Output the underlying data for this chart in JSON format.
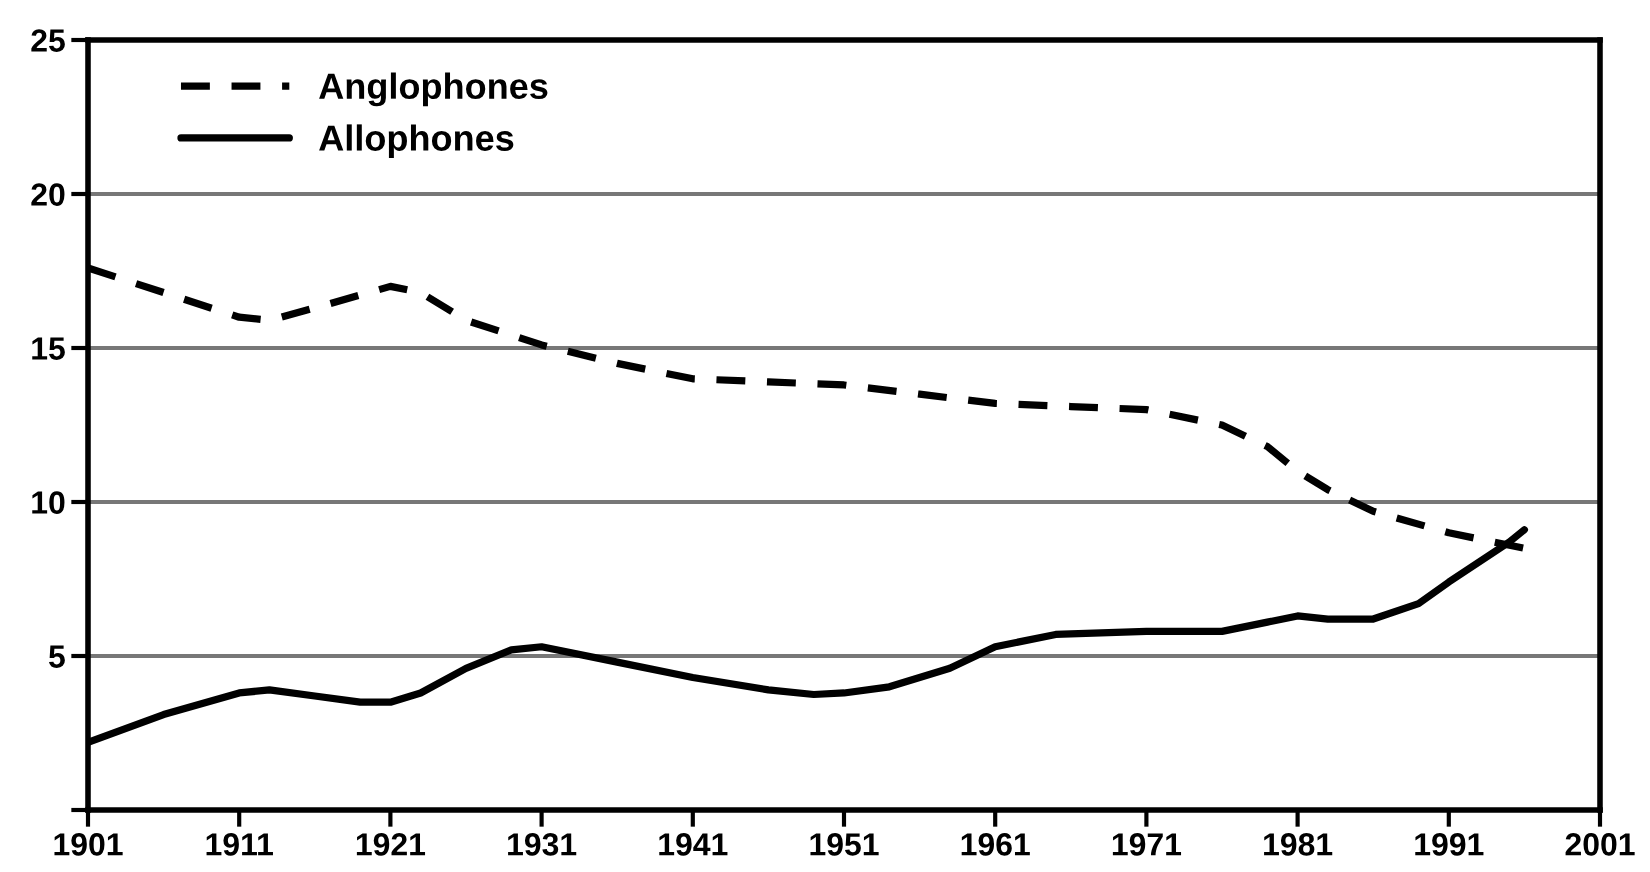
{
  "chart_data": {
    "type": "line",
    "xlim": [
      1901,
      2001
    ],
    "xticks": [
      1901,
      1911,
      1921,
      1931,
      1941,
      1951,
      1961,
      1971,
      1981,
      1991,
      2001
    ],
    "ylim": [
      0,
      25
    ],
    "yticks": [
      {
        "value": 0,
        "label": null
      },
      5,
      10,
      15,
      20,
      25
    ],
    "grid": "y",
    "legend": "top left",
    "marker": "none",
    "series": [
      {
        "name": "Anglophones",
        "color": "#000000",
        "line_style": "dashed",
        "x": [
          1901,
          1906,
          1911,
          1913,
          1916,
          1921,
          1923,
          1926,
          1931,
          1936,
          1941,
          1946,
          1951,
          1956,
          1961,
          1966,
          1971,
          1976,
          1979,
          1981,
          1983,
          1986,
          1991,
          1996
        ],
        "values": [
          17.6,
          16.8,
          16.0,
          15.9,
          16.3,
          17.0,
          16.8,
          15.9,
          15.1,
          14.5,
          14.0,
          13.9,
          13.8,
          13.5,
          13.2,
          13.1,
          13.0,
          12.5,
          11.8,
          11.0,
          10.4,
          9.7,
          9.0,
          8.5
        ]
      },
      {
        "name": "Allophones",
        "color": "#000000",
        "line_style": "solid",
        "x": [
          1901,
          1906,
          1911,
          1913,
          1916,
          1919,
          1921,
          1923,
          1926,
          1929,
          1931,
          1936,
          1941,
          1946,
          1949,
          1951,
          1954,
          1958,
          1961,
          1965,
          1971,
          1976,
          1979,
          1981,
          1983,
          1986,
          1989,
          1991,
          1995,
          1996
        ],
        "values": [
          2.2,
          3.1,
          3.8,
          3.9,
          3.7,
          3.5,
          3.5,
          3.8,
          4.6,
          5.2,
          5.3,
          4.8,
          4.3,
          3.9,
          3.75,
          3.8,
          4.0,
          4.6,
          5.3,
          5.7,
          5.8,
          5.8,
          6.1,
          6.3,
          6.2,
          6.2,
          6.7,
          7.4,
          8.7,
          9.1
        ]
      }
    ]
  }
}
